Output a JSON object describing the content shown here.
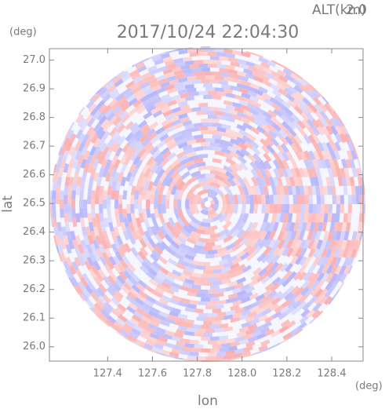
{
  "chart_data": {
    "type": "radar-ppi",
    "title": "2017/10/24 22:04:30",
    "altitude_label": "ALT(km)",
    "altitude": "2.0",
    "x_label": "lon",
    "y_label": "lat",
    "x_unit": "(deg)",
    "y_unit": "(deg)",
    "xlim": [
      127.14,
      128.54
    ],
    "ylim": [
      25.95,
      27.04
    ],
    "xticks": [
      127.4,
      127.6,
      127.8,
      {
        "value": 128.0,
        "label": "128.0"
      },
      128.2,
      128.4
    ],
    "yticks": [
      {
        "value": 26.0,
        "label": "26.0"
      },
      26.1,
      26.2,
      26.3,
      26.4,
      26.5,
      26.6,
      26.7,
      26.8,
      26.9,
      {
        "value": 27.0,
        "label": "27.0"
      }
    ]
  }
}
